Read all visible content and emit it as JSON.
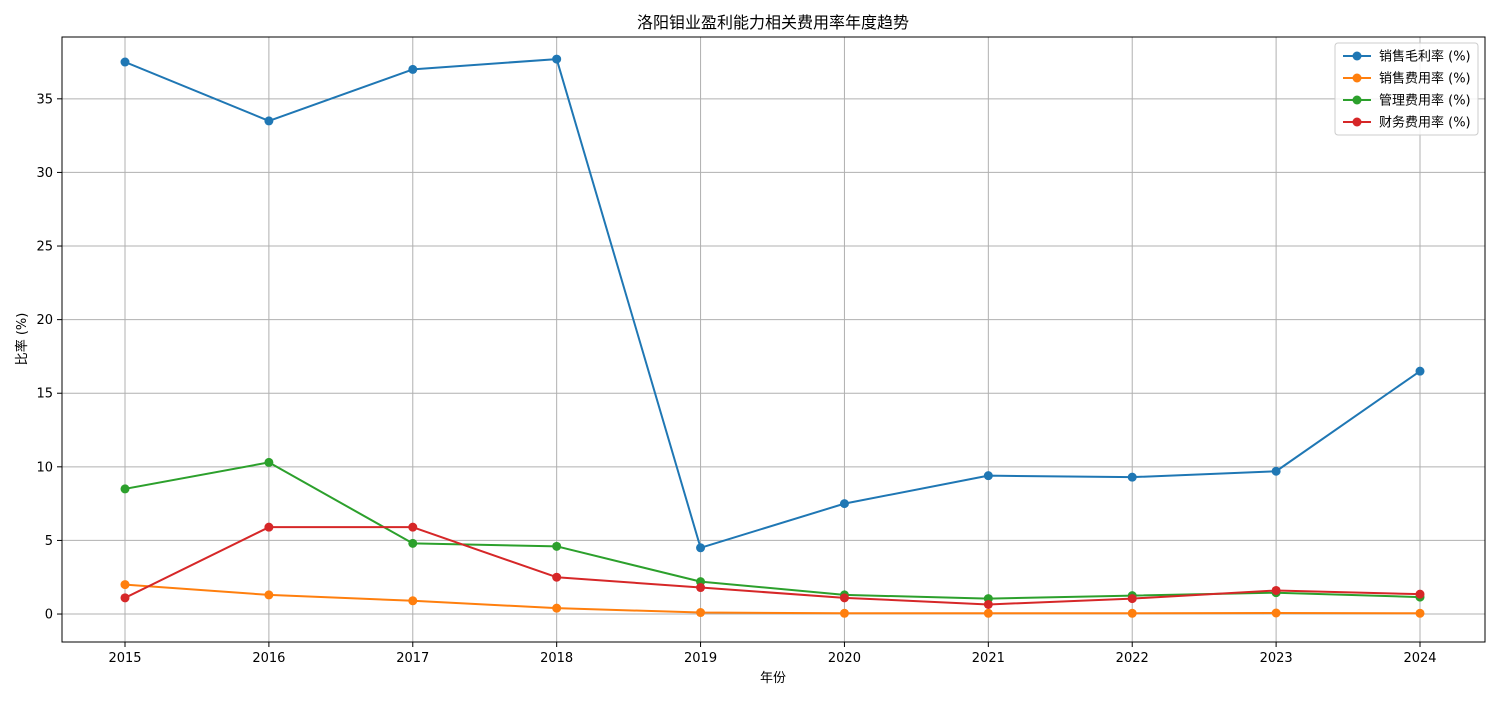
{
  "chart_data": {
    "type": "line",
    "title": "洛阳钼业盈利能力相关费用率年度趋势",
    "xlabel": "年份",
    "ylabel": "比率 (%)",
    "categories": [
      "2015",
      "2016",
      "2017",
      "2018",
      "2019",
      "2020",
      "2021",
      "2022",
      "2023",
      "2024"
    ],
    "ylim": [
      -1.9,
      39.2
    ],
    "yticks": [
      0,
      5,
      10,
      15,
      20,
      25,
      30,
      35
    ],
    "grid": true,
    "legend_position": "top-right",
    "marker": "circle",
    "series": [
      {
        "name": "销售毛利率 (%)",
        "color": "#1f77b4",
        "values": [
          37.5,
          33.5,
          37.0,
          37.7,
          4.5,
          7.5,
          9.4,
          9.3,
          9.7,
          16.5
        ]
      },
      {
        "name": "销售费用率 (%)",
        "color": "#ff7f0e",
        "values": [
          2.0,
          1.3,
          0.9,
          0.4,
          0.1,
          0.05,
          0.05,
          0.05,
          0.07,
          0.05
        ]
      },
      {
        "name": "管理费用率 (%)",
        "color": "#2ca02c",
        "values": [
          8.5,
          10.3,
          4.8,
          4.6,
          2.2,
          1.3,
          1.05,
          1.25,
          1.45,
          1.15
        ]
      },
      {
        "name": "财务费用率 (%)",
        "color": "#d62728",
        "values": [
          1.1,
          5.9,
          5.9,
          2.5,
          1.8,
          1.1,
          0.65,
          1.05,
          1.6,
          1.35
        ]
      }
    ]
  }
}
